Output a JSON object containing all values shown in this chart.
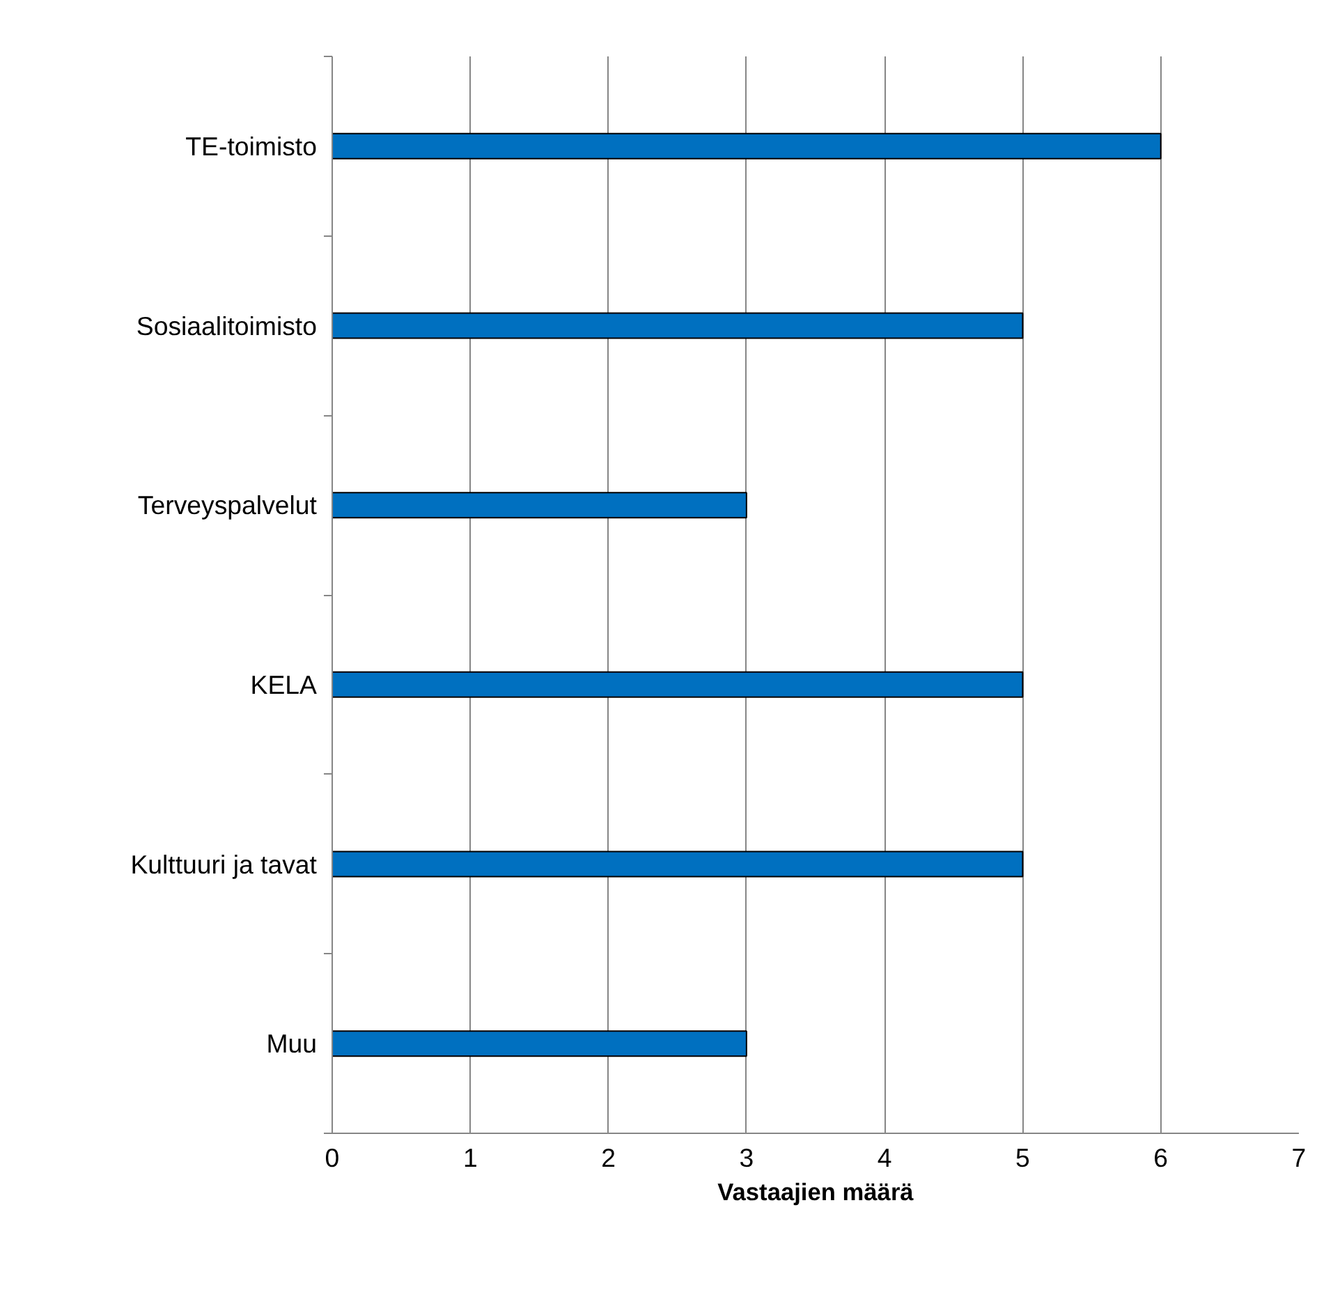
{
  "chart_data": {
    "type": "bar",
    "orientation": "horizontal",
    "xlabel": "Vastaajien määrä",
    "categories": [
      "TE-toimisto",
      "Sosiaalitoimisto",
      "Terveyspalvelut",
      "KELA",
      "Kulttuuri ja tavat",
      "Muu"
    ],
    "values": [
      6,
      5,
      3,
      5,
      5,
      3
    ],
    "color": "#0070c0",
    "xlim": [
      0,
      7
    ],
    "xticks": [
      0,
      1,
      2,
      3,
      4,
      5,
      6,
      7
    ],
    "grid": "x"
  }
}
